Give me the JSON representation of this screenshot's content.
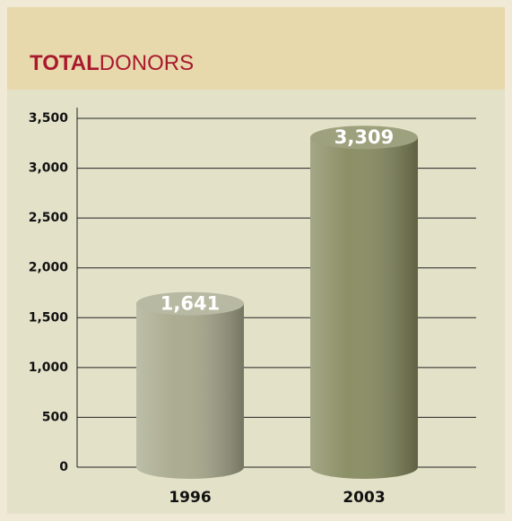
{
  "chart_data": {
    "type": "bar",
    "title": [
      "TOTAL",
      "DONORS"
    ],
    "categories": [
      "1996",
      "2003"
    ],
    "values": [
      1641,
      3309
    ],
    "value_labels": [
      "1,641",
      "3,309"
    ],
    "colors": [
      "#a7a88b",
      "#868a5e"
    ],
    "ylim": [
      0,
      3500
    ],
    "yticks": [
      0,
      500,
      {
        "value": 1000,
        "label": "1,000"
      },
      {
        "value": 1500,
        "label": "1,500"
      },
      {
        "value": 2000,
        "label": "2,000"
      },
      {
        "value": 2500,
        "label": "2,500"
      },
      {
        "value": 3000,
        "label": "3,000"
      },
      {
        "value": 3500,
        "label": "3,500"
      }
    ],
    "grid": true
  }
}
